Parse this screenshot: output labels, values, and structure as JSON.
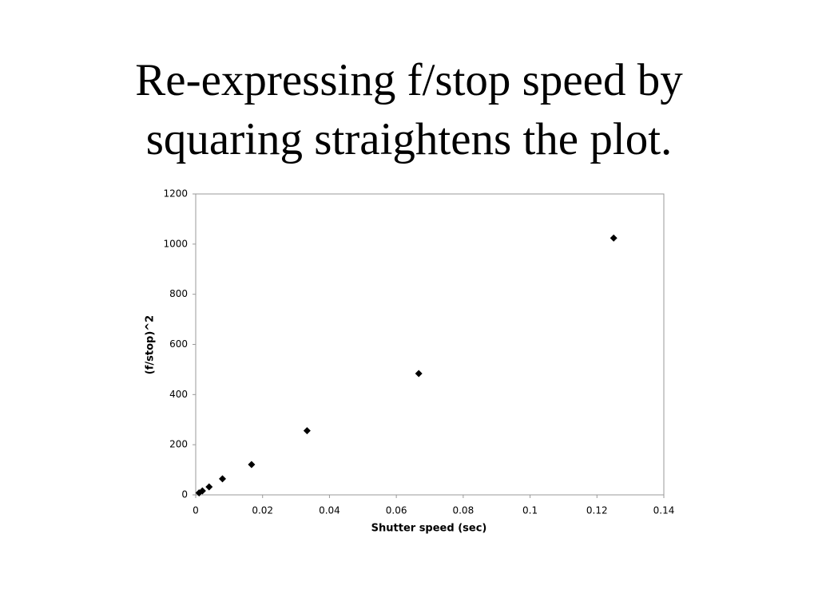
{
  "chart_data": {
    "type": "scatter",
    "title": "Re-expressing f/stop speed by squaring straightens the plot.",
    "x_label": "Shutter speed (sec)",
    "y_label": "(f/stop)^2",
    "series": [
      {
        "color": "#000000",
        "x": [
          0.001,
          0.002,
          0.004,
          0.008,
          0.0167,
          0.0333,
          0.0667,
          0.125
        ],
        "values": [
          8,
          16,
          32,
          64,
          121,
          256,
          484,
          1024
        ]
      }
    ],
    "xlim": [
      0,
      0.14
    ],
    "xticks": [
      0,
      0.02,
      0.04,
      0.06,
      0.08,
      0.1,
      0.12,
      0.14
    ],
    "ylim": [
      0,
      1200
    ],
    "yticks": [
      0,
      200,
      400,
      600,
      800,
      1000,
      1200
    ],
    "grid": false
  }
}
